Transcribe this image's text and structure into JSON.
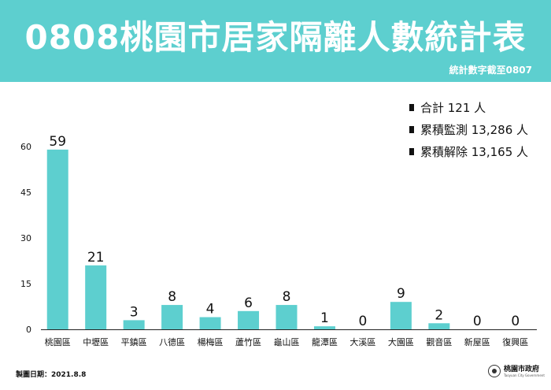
{
  "header": {
    "title": "0808桃園市居家隔離人數統計表",
    "subtitle": "統計數字截至0807",
    "background": "#5dcfcf"
  },
  "legend": [
    "合計 121 人",
    "累積監測 13,286 人",
    "累積解除 13,165 人"
  ],
  "chart_data": {
    "type": "bar",
    "categories": [
      "桃園區",
      "中壢區",
      "平鎮區",
      "八德區",
      "楊梅區",
      "蘆竹區",
      "龜山區",
      "龍潭區",
      "大溪區",
      "大園區",
      "觀音區",
      "新屋區",
      "復興區"
    ],
    "values": [
      59,
      21,
      3,
      8,
      4,
      6,
      8,
      1,
      0,
      9,
      2,
      0,
      0
    ],
    "yticks": [
      "0",
      "15",
      "30",
      "45",
      "60"
    ],
    "ylim": [
      0,
      60
    ],
    "bar_color": "#5dcfcf",
    "title": "",
    "xlabel": "",
    "ylabel": ""
  },
  "footer": {
    "date": "製圖日期：2021.8.8",
    "org": "桃園市政府",
    "org_en": "Taoyuan City Government"
  }
}
